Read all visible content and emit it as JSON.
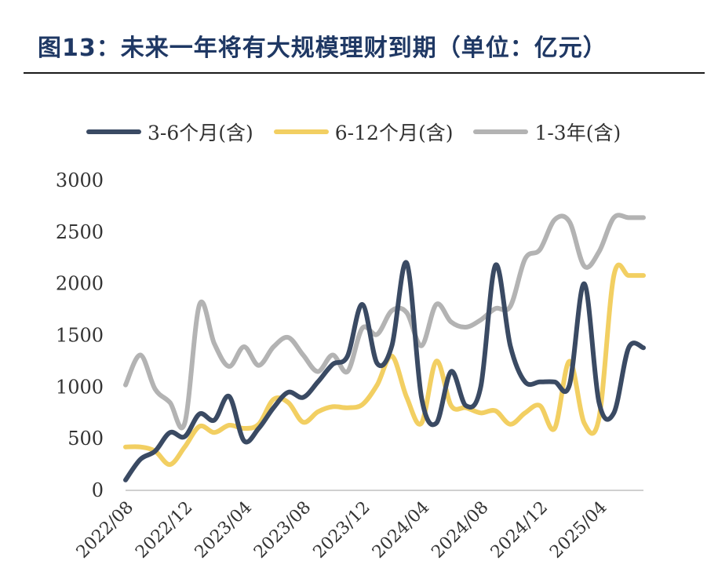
{
  "title": "图13：未来一年将有大规模理财到期（单位：亿元）",
  "chart_data": {
    "type": "line",
    "title": "图13：未来一年将有大规模理财到期（单位：亿元）",
    "ylim": [
      0,
      3000
    ],
    "yticks": [
      "0",
      "500",
      "1000",
      "1500",
      "2000",
      "2500",
      "3000"
    ],
    "xticks": [
      "2022/08",
      "2022/12",
      "2023/04",
      "2023/08",
      "2023/12",
      "2024/04",
      "2024/08",
      "2024/12",
      "2025/04"
    ],
    "x": [
      "2022/08",
      "2022/09",
      "2022/10",
      "2022/11",
      "2022/12",
      "2023/01",
      "2023/02",
      "2023/03",
      "2023/04",
      "2023/05",
      "2023/06",
      "2023/07",
      "2023/08",
      "2023/09",
      "2023/10",
      "2023/11",
      "2023/12",
      "2024/01",
      "2024/02",
      "2024/03",
      "2024/04",
      "2024/05",
      "2024/06",
      "2024/07",
      "2024/08",
      "2024/09",
      "2024/10",
      "2024/11",
      "2024/12",
      "2025/01",
      "2025/02",
      "2025/03",
      "2025/04",
      "2025/05",
      "2025/06",
      "2025/07"
    ],
    "series": [
      {
        "name": "3-6个月(含)",
        "color": "#3a4a63",
        "values": [
          100,
          300,
          380,
          560,
          520,
          740,
          680,
          910,
          480,
          600,
          800,
          950,
          900,
          1050,
          1220,
          1300,
          1800,
          1230,
          1400,
          2200,
          900,
          650,
          1150,
          820,
          1000,
          2180,
          1400,
          1050,
          1050,
          1050,
          1020,
          2000,
          850,
          750,
          1380,
          1380
        ]
      },
      {
        "name": "6-12个月(含)",
        "color": "#f2cf62",
        "values": [
          420,
          420,
          380,
          250,
          420,
          620,
          560,
          630,
          600,
          640,
          880,
          850,
          660,
          760,
          810,
          800,
          830,
          1020,
          1300,
          900,
          650,
          1250,
          820,
          800,
          750,
          770,
          640,
          750,
          820,
          600,
          1250,
          650,
          700,
          2080,
          2080,
          2080
        ]
      },
      {
        "name": "1-3年(含)",
        "color": "#b3b3b3",
        "values": [
          1020,
          1310,
          980,
          850,
          650,
          1800,
          1420,
          1200,
          1390,
          1210,
          1390,
          1480,
          1310,
          1150,
          1310,
          1150,
          1570,
          1510,
          1740,
          1720,
          1400,
          1800,
          1630,
          1580,
          1650,
          1760,
          1780,
          2240,
          2330,
          2620,
          2600,
          2170,
          2310,
          2640,
          2640,
          2640
        ]
      }
    ],
    "grid": false,
    "legend": "top"
  }
}
